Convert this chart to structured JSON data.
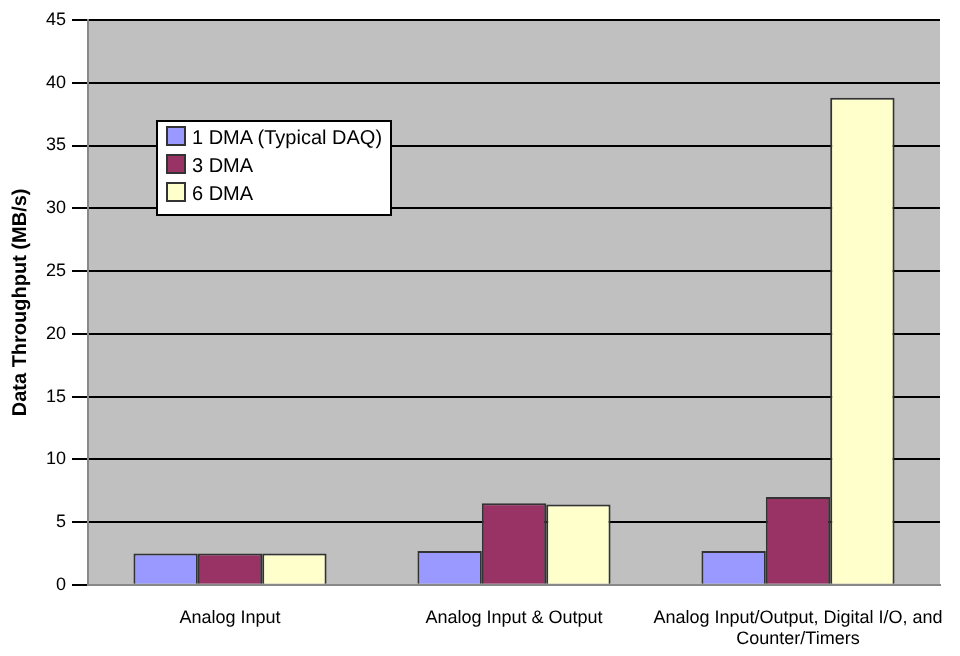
{
  "chart_data": {
    "type": "bar",
    "ylabel": "Data Throughput (MB/s)",
    "categories": [
      "Analog Input",
      "Analog Input & Output",
      "Analog Input/Output, Digital I/O, and Counter/Timers"
    ],
    "series": [
      {
        "name": "1 DMA (Typical DAQ)",
        "color": "#9999ff",
        "values": [
          2.5,
          2.7,
          2.7
        ]
      },
      {
        "name": "3 DMA",
        "color": "#993366",
        "values": [
          2.5,
          6.5,
          7
        ]
      },
      {
        "name": "6 DMA",
        "color": "#ffffcc",
        "values": [
          2.5,
          6.4,
          38.8
        ]
      }
    ],
    "ylim": [
      0,
      45
    ],
    "yticks": [
      0,
      5,
      10,
      15,
      20,
      25,
      30,
      35,
      40,
      45
    ],
    "grid": "y",
    "legend": "top left"
  }
}
